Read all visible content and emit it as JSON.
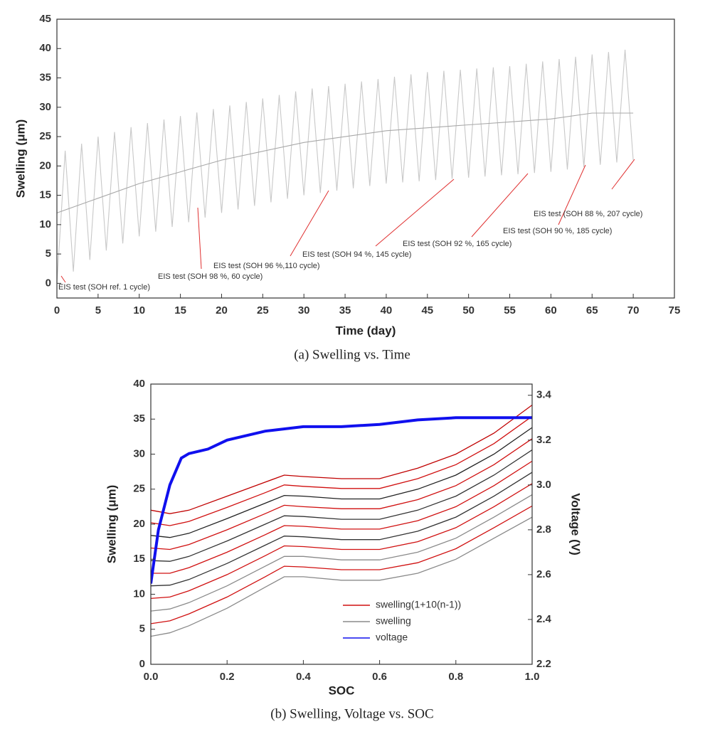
{
  "chart_data": [
    {
      "type": "line",
      "caption": "(a) Swelling vs. Time",
      "xlabel": "Time (day)",
      "ylabel": "Swelling (μm)",
      "xlim": [
        0,
        75
      ],
      "xticks": [
        0,
        5,
        10,
        15,
        20,
        25,
        30,
        35,
        40,
        45,
        50,
        55,
        60,
        65,
        70,
        75
      ],
      "ylim": [
        -2.5,
        45
      ],
      "yticks": [
        0,
        5,
        10,
        15,
        20,
        25,
        30,
        35,
        40,
        45
      ],
      "series": [
        {
          "color": "#c8c8c8",
          "x": [
            0,
            1,
            2,
            3,
            4,
            5,
            6,
            7,
            8,
            9,
            10,
            11,
            12,
            13,
            14,
            15,
            16,
            17,
            18,
            19,
            20,
            21,
            22,
            23,
            24,
            25,
            26,
            27,
            28,
            29,
            30,
            31,
            32,
            33,
            34,
            35,
            36,
            37,
            38,
            39,
            40,
            41,
            42,
            43,
            44,
            45,
            46,
            47,
            48,
            49,
            50,
            51,
            52,
            53,
            54,
            55,
            56,
            57,
            58,
            59,
            60,
            61,
            62,
            63,
            64,
            65,
            66,
            67,
            68,
            69,
            70
          ],
          "values": [
            0,
            22.6,
            2,
            23.8,
            4,
            25,
            5.6,
            25.8,
            6.8,
            26.6,
            8,
            27.3,
            8.8,
            27.9,
            9.6,
            28.5,
            10.4,
            29.1,
            11.2,
            29.7,
            12,
            30.3,
            12.6,
            30.9,
            13.2,
            31.5,
            13.8,
            32.1,
            14.4,
            32.7,
            15,
            33.2,
            15.4,
            33.6,
            15.8,
            34,
            16.2,
            34.4,
            16.6,
            34.8,
            17,
            35.2,
            17.2,
            35.6,
            17.4,
            36,
            17.6,
            36.2,
            17.8,
            36.4,
            18,
            36.6,
            18.2,
            36.8,
            18.4,
            37,
            18.6,
            37.4,
            18.8,
            37.8,
            19,
            38.2,
            19.4,
            38.6,
            19.8,
            39,
            20.2,
            39.4,
            20.6,
            39.8,
            21
          ]
        },
        {
          "color": "#a8a8a8",
          "x": [
            0,
            5,
            10,
            15,
            20,
            25,
            30,
            35,
            40,
            45,
            50,
            55,
            60,
            65,
            70
          ],
          "values": [
            12,
            14.5,
            17,
            19,
            21,
            22.5,
            24,
            25,
            26,
            26.5,
            27,
            27.5,
            28,
            29,
            29
          ]
        }
      ],
      "annotations": [
        "EIS test (SOH ref. 1 cycle)",
        "EIS test (SOH 98 %, 60 cycle)",
        "EIS test (SOH 96 %,110 cycle)",
        "EIS test (SOH 94 %, 145 cycle)",
        "EIS test (SOH 92 %, 165 cycle)",
        "EIS test (SOH 90 %, 185 cycle)",
        "EIS test (SOH 88 %, 207 cycle)"
      ]
    },
    {
      "type": "line",
      "caption": "(b) Swelling, Voltage vs. SOC",
      "xlabel": "SOC",
      "ylabel": "Swelling (μm)",
      "y2label": "Voltage (V)",
      "xlim": [
        0,
        1
      ],
      "xticks": [
        {
          "value": 0,
          "label": "0.0"
        },
        0.2,
        0.4,
        0.6,
        0.8,
        {
          "value": 1,
          "label": "1.0"
        }
      ],
      "ylim": [
        0,
        40
      ],
      "yticks": [
        0,
        5,
        10,
        15,
        20,
        25,
        30,
        35,
        40
      ],
      "y2lim": [
        2.2,
        3.45
      ],
      "y2ticks": [
        2.2,
        2.4,
        2.6,
        2.8,
        {
          "value": 3,
          "label": "3.0"
        },
        3.2,
        3.4
      ],
      "x": [
        0,
        0.05,
        0.1,
        0.2,
        0.3,
        0.35,
        0.4,
        0.5,
        0.6,
        0.7,
        0.8,
        0.9,
        1.0
      ],
      "series": [
        {
          "name": "swelling",
          "color": "#8a8a8a",
          "values": [
            4,
            4.5,
            5.5,
            8,
            11,
            12.5,
            12.5,
            12,
            12,
            13,
            15,
            18,
            21
          ]
        },
        {
          "color": "#8a8a8a",
          "values": [
            7.6,
            7.9,
            8.8,
            11.2,
            14,
            15.4,
            15.4,
            14.9,
            14.9,
            16,
            18,
            21,
            24.2
          ]
        },
        {
          "color": "#333333",
          "values": [
            11.2,
            11.3,
            12.1,
            14.4,
            17,
            18.3,
            18.2,
            17.8,
            17.8,
            19,
            21,
            24,
            27.4
          ]
        },
        {
          "color": "#333333",
          "values": [
            14.8,
            14.7,
            15.4,
            17.6,
            20,
            21.2,
            21.1,
            20.7,
            20.7,
            22,
            24,
            27,
            30.6
          ]
        },
        {
          "color": "#222222",
          "values": [
            18.4,
            18.1,
            18.7,
            20.8,
            23,
            24.1,
            24,
            23.6,
            23.6,
            25,
            27,
            30,
            33.8
          ]
        },
        {
          "name": "swelling(1+10(n-1))",
          "color": "#d01010",
          "values": [
            5.8,
            6.2,
            7.2,
            9.6,
            12.5,
            14,
            13.9,
            13.5,
            13.5,
            14.5,
            16.5,
            19.5,
            22.6
          ]
        },
        {
          "color": "#d01010",
          "values": [
            9.4,
            9.6,
            10.5,
            12.8,
            15.5,
            16.9,
            16.8,
            16.4,
            16.4,
            17.5,
            19.5,
            22.5,
            25.8
          ]
        },
        {
          "color": "#d01010",
          "values": [
            13,
            13,
            13.8,
            16,
            18.5,
            19.8,
            19.7,
            19.3,
            19.3,
            20.5,
            22.5,
            25.5,
            29
          ]
        },
        {
          "color": "#d01010",
          "values": [
            16.6,
            16.4,
            17.1,
            19.2,
            21.5,
            22.7,
            22.5,
            22.2,
            22.2,
            23.5,
            25.5,
            28.5,
            32.2
          ]
        },
        {
          "color": "#d01010",
          "values": [
            20.2,
            19.8,
            20.4,
            22.4,
            24.5,
            25.6,
            25.4,
            25.1,
            25.1,
            26.5,
            28.5,
            31.5,
            35.4
          ]
        },
        {
          "color": "#c00000",
          "values": [
            22,
            21.5,
            22,
            24,
            26,
            27,
            26.8,
            26.5,
            26.5,
            28,
            30,
            33,
            37
          ]
        },
        {
          "name": "voltage",
          "color": "#1010ee",
          "axis": "y2",
          "x": [
            0,
            0.02,
            0.05,
            0.08,
            0.1,
            0.15,
            0.2,
            0.3,
            0.4,
            0.5,
            0.6,
            0.7,
            0.8,
            0.9,
            1.0
          ],
          "values": [
            2.56,
            2.8,
            3.0,
            3.12,
            3.14,
            3.16,
            3.2,
            3.24,
            3.26,
            3.26,
            3.27,
            3.29,
            3.3,
            3.3,
            3.3
          ]
        }
      ]
    }
  ]
}
